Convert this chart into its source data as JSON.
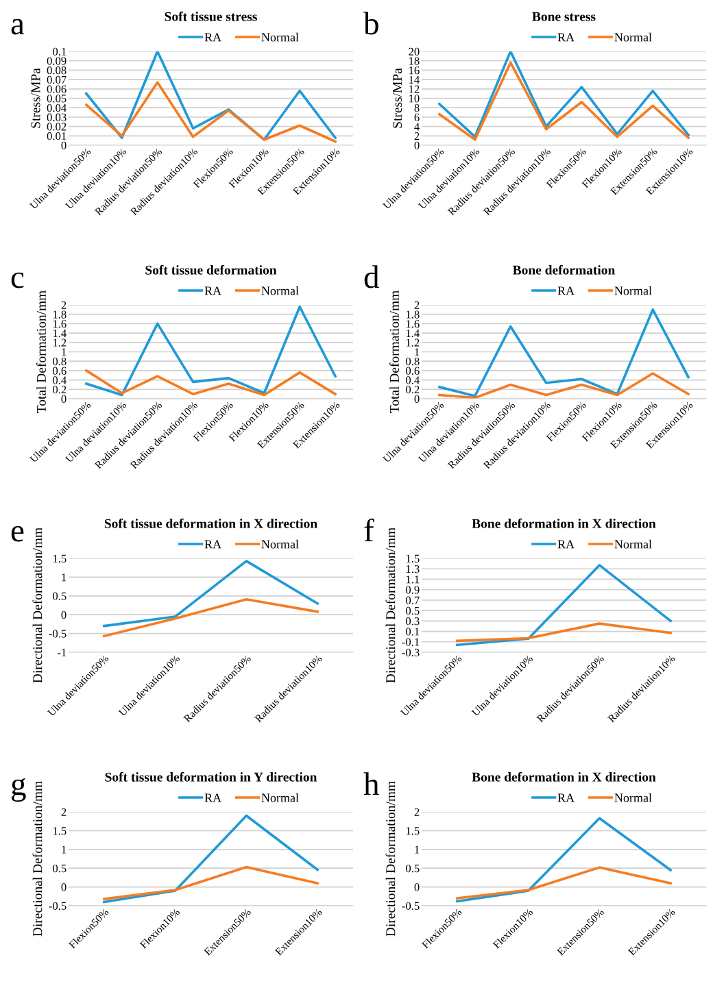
{
  "chart_data": [
    {
      "type": "line",
      "title": "Soft tissue stress",
      "ylabel": "Stress/MPa",
      "annotations": [
        "a"
      ],
      "categories": [
        "Ulna deviation50%",
        "Ulna deviation10%",
        "Radius deviation50%",
        "Radius deviation10%",
        "Flexion50%",
        "Flexion10%",
        "Extension50%",
        "Extension10%"
      ],
      "series": [
        {
          "name": "RA",
          "color": "#1f9ad7",
          "values": [
            0.055,
            0.008,
            0.1,
            0.018,
            0.038,
            0.006,
            0.058,
            0.008
          ]
        },
        {
          "name": "Normal",
          "color": "#f57c21",
          "values": [
            0.043,
            0.01,
            0.067,
            0.009,
            0.037,
            0.006,
            0.021,
            0.004
          ]
        }
      ],
      "ylim": [
        0,
        0.1
      ],
      "yticks": [
        0,
        0.01,
        0.02,
        0.03,
        0.04,
        0.05,
        0.06,
        0.07,
        0.08,
        0.09,
        0.1
      ],
      "grid": "y",
      "legend": "top"
    },
    {
      "type": "line",
      "title": "Bone stress",
      "ylabel": "Stress/MPa",
      "annotations": [
        "b"
      ],
      "categories": [
        "Ulna deviation50%",
        "Ulna deviation10%",
        "Radius deviation50%",
        "Radius deviation10%",
        "Flexion50%",
        "Flexion10%",
        "Extension50%",
        "Extension10%"
      ],
      "series": [
        {
          "name": "RA",
          "color": "#1f9ad7",
          "values": [
            8.8,
            1.8,
            20,
            4,
            12.4,
            2.4,
            11.6,
            2.2
          ]
        },
        {
          "name": "Normal",
          "color": "#f57c21",
          "values": [
            6.6,
            1.2,
            17.6,
            3.4,
            9.2,
            1.8,
            8.4,
            1.6
          ]
        }
      ],
      "ylim": [
        0,
        20
      ],
      "yticks": [
        0,
        2,
        4,
        6,
        8,
        10,
        12,
        14,
        16,
        18,
        20
      ],
      "grid": "y",
      "legend": "top"
    },
    {
      "type": "line",
      "title": "Soft tissue deformation",
      "ylabel": "Total Deformation/mm",
      "annotations": [
        "c"
      ],
      "categories": [
        "Ulna deviation50%",
        "Ulna deviation10%",
        "Radius deviation50%",
        "Radius deviation10%",
        "Flexion50%",
        "Flexion10%",
        "Extension50%",
        "Extension10%"
      ],
      "series": [
        {
          "name": "RA",
          "color": "#1f9ad7",
          "values": [
            0.32,
            0.08,
            1.6,
            0.36,
            0.44,
            0.12,
            1.96,
            0.48
          ]
        },
        {
          "name": "Normal",
          "color": "#f57c21",
          "values": [
            0.6,
            0.12,
            0.48,
            0.1,
            0.32,
            0.08,
            0.56,
            0.1
          ]
        }
      ],
      "ylim": [
        0,
        2
      ],
      "yticks": [
        0,
        0.2,
        0.4,
        0.6,
        0.8,
        1,
        1.2,
        1.4,
        1.6,
        1.8,
        2
      ],
      "grid": "y",
      "legend": "top"
    },
    {
      "type": "line",
      "title": "Bone deformation",
      "ylabel": "Total Deformation/mm",
      "annotations": [
        "d"
      ],
      "categories": [
        "Ulna deviation50%",
        "Ulna deviation10%",
        "Radius deviation50%",
        "Radius deviation10%",
        "Flexion50%",
        "Flexion10%",
        "Extension50%",
        "Extension10%"
      ],
      "series": [
        {
          "name": "RA",
          "color": "#1f9ad7",
          "values": [
            0.25,
            0.06,
            1.54,
            0.34,
            0.42,
            0.1,
            1.9,
            0.46
          ]
        },
        {
          "name": "Normal",
          "color": "#f57c21",
          "values": [
            0.08,
            0.02,
            0.3,
            0.08,
            0.3,
            0.08,
            0.54,
            0.1
          ]
        }
      ],
      "ylim": [
        0,
        2
      ],
      "yticks": [
        0,
        0.2,
        0.4,
        0.6,
        0.8,
        1,
        1.2,
        1.4,
        1.6,
        1.8,
        2
      ],
      "grid": "y",
      "legend": "top"
    },
    {
      "type": "line",
      "title": "Soft tissue deformation in X direction",
      "ylabel": "Directional Deformation/mm",
      "annotations": [
        "e"
      ],
      "categories": [
        "Ulna deviation50%",
        "Ulna deviation10%",
        "Radius deviation50%",
        "Radius deviation10%"
      ],
      "series": [
        {
          "name": "RA",
          "color": "#1f9ad7",
          "values": [
            -0.3,
            -0.05,
            1.43,
            0.3
          ]
        },
        {
          "name": "Normal",
          "color": "#f57c21",
          "values": [
            -0.57,
            -0.1,
            0.41,
            0.08
          ]
        }
      ],
      "ylim": [
        -1,
        1.5
      ],
      "yticks": [
        -1,
        -0.5,
        0,
        0.5,
        1,
        1.5
      ],
      "grid": "y",
      "legend": "top"
    },
    {
      "type": "line",
      "title": "Bone deformation in X direction",
      "ylabel": "Directional Deformation/mm",
      "annotations": [
        "f"
      ],
      "categories": [
        "Ulna deviation50%",
        "Ulna deviation10%",
        "Radius deviation50%",
        "Radius deviation10%"
      ],
      "series": [
        {
          "name": "RA",
          "color": "#1f9ad7",
          "values": [
            -0.16,
            -0.04,
            1.37,
            0.3
          ]
        },
        {
          "name": "Normal",
          "color": "#f57c21",
          "values": [
            -0.08,
            -0.03,
            0.25,
            0.07
          ]
        }
      ],
      "ylim": [
        -0.3,
        1.5
      ],
      "yticks": [
        -0.3,
        -0.1,
        0.1,
        0.3,
        0.5,
        0.7,
        0.9,
        1.1,
        1.3,
        1.5
      ],
      "grid": "y",
      "legend": "top"
    },
    {
      "type": "line",
      "title": "Soft tissue deformation in Y direction",
      "ylabel": "Directional Deformation/mm",
      "annotations": [
        "g"
      ],
      "categories": [
        "Flexion50%",
        "Flexion10%",
        "Extension50%",
        "Extension10%"
      ],
      "series": [
        {
          "name": "RA",
          "color": "#1f9ad7",
          "values": [
            -0.4,
            -0.1,
            1.9,
            0.46
          ]
        },
        {
          "name": "Normal",
          "color": "#f57c21",
          "values": [
            -0.32,
            -0.08,
            0.53,
            0.1
          ]
        }
      ],
      "ylim": [
        -0.5,
        2
      ],
      "yticks": [
        -0.5,
        0,
        0.5,
        1,
        1.5,
        2
      ],
      "grid": "y",
      "legend": "top"
    },
    {
      "type": "line",
      "title": "Bone deformation in X direction",
      "ylabel": "Directional Deformation/mm",
      "annotations": [
        "h"
      ],
      "categories": [
        "Flexion50%",
        "Flexion10%",
        "Extension50%",
        "Extension10%"
      ],
      "series": [
        {
          "name": "RA",
          "color": "#1f9ad7",
          "values": [
            -0.38,
            -0.1,
            1.83,
            0.45
          ]
        },
        {
          "name": "Normal",
          "color": "#f57c21",
          "values": [
            -0.3,
            -0.08,
            0.52,
            0.1
          ]
        }
      ],
      "ylim": [
        -0.5,
        2
      ],
      "yticks": [
        -0.5,
        0,
        0.5,
        1,
        1.5,
        2
      ],
      "grid": "y",
      "legend": "top"
    }
  ]
}
